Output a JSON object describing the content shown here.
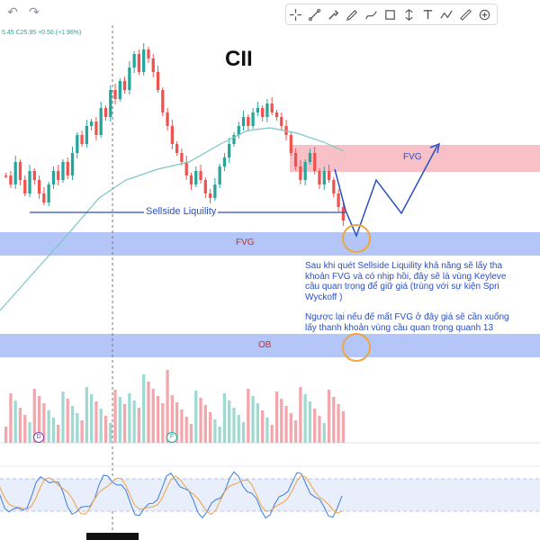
{
  "toolbar": {
    "undo_icon": "undo-icon",
    "redo_icon": "redo-icon",
    "tools": [
      "crosshair-icon",
      "trend-line-icon",
      "brush-icon",
      "pen-icon",
      "curve-icon",
      "rectangle-icon",
      "measure-icon",
      "text-icon",
      "path-icon",
      "ruler-icon",
      "more-icon"
    ]
  },
  "chart": {
    "ticker_text": "5.45  C25.95  +0.50 (+1.96%)",
    "title": "CII",
    "labels": {
      "sellside": "Sellside Liquility",
      "fvg_upper": "FVG",
      "fvg_lower": "FVG",
      "ob": "OB"
    },
    "note_1": "Sau khi quét Sellside Liquility khả năng sẽ lấy tha\nkhoản FVG và có nhịp hồi, đây sẽ là vùng Keyleve\ncầu quan trọng để giữ giá (trùng với sự kiện Spri\nWyckoff )",
    "note_2": "Ngược lại nếu để mất FVG ở đây giá sẽ cần xuống\nlấy thanh khoản vùng cầu quan trọng quanh 13",
    "volume_markers": [
      "D",
      "F"
    ],
    "colors": {
      "up": "#26a69a",
      "down": "#ef5350",
      "fvg_zone": "#f7c1c7",
      "demand_zone": "#b3c6f7",
      "ma": "#7cc7c5",
      "annotation": "#2a4fc4",
      "circle": "#f0a640"
    }
  }
}
